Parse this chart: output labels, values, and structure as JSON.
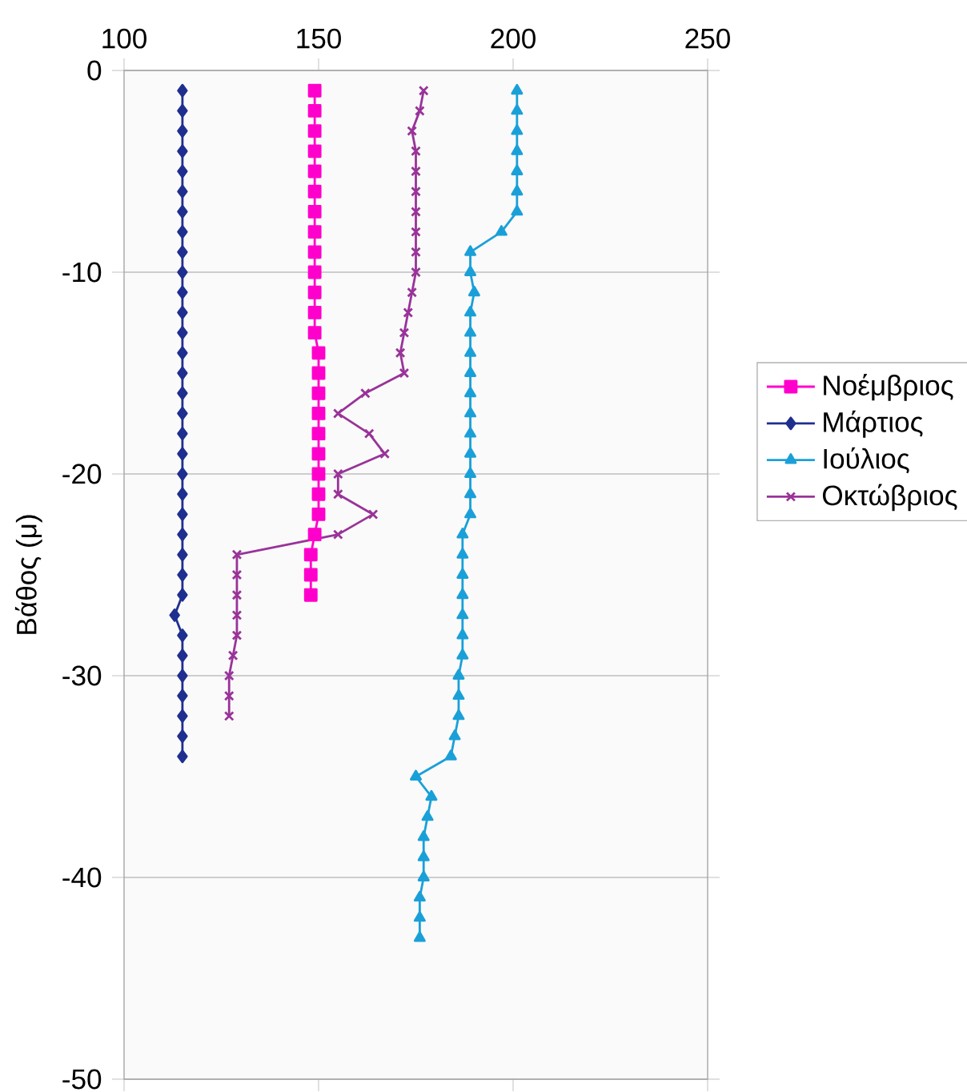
{
  "chart_data": {
    "type": "line",
    "ylabel": "Βάθος (μ)",
    "xlim": [
      100,
      250
    ],
    "xticks": [
      100,
      150,
      200,
      250
    ],
    "ylim": [
      -50,
      0
    ],
    "yticks": [
      -50,
      -40,
      -30,
      -20,
      -10,
      0
    ],
    "grid": "y",
    "legend": "right",
    "series": [
      {
        "name": "Νοέμβριος",
        "color": "#ff00cc",
        "marker": "square",
        "x": [
          149,
          149,
          149,
          149,
          149,
          149,
          149,
          149,
          149,
          149,
          149,
          149,
          149,
          150,
          150,
          150,
          150,
          150,
          150,
          150,
          150,
          150,
          149,
          148,
          148,
          148
        ],
        "values": [
          -1,
          -2,
          -3,
          -4,
          -5,
          -6,
          -7,
          -8,
          -9,
          -10,
          -11,
          -12,
          -13,
          -14,
          -15,
          -16,
          -17,
          -18,
          -19,
          -20,
          -21,
          -22,
          -23,
          -24,
          -25,
          -26
        ]
      },
      {
        "name": "Μάρτιος",
        "color": "#1f2f8f",
        "marker": "diamond",
        "x": [
          115,
          115,
          115,
          115,
          115,
          115,
          115,
          115,
          115,
          115,
          115,
          115,
          115,
          115,
          115,
          115,
          115,
          115,
          115,
          115,
          115,
          115,
          115,
          115,
          115,
          115,
          113,
          115,
          115,
          115,
          115,
          115,
          115,
          115
        ],
        "values": [
          -1,
          -2,
          -3,
          -4,
          -5,
          -6,
          -7,
          -8,
          -9,
          -10,
          -11,
          -12,
          -13,
          -14,
          -15,
          -16,
          -17,
          -18,
          -19,
          -20,
          -21,
          -22,
          -23,
          -24,
          -25,
          -26,
          -27,
          -28,
          -29,
          -30,
          -31,
          -32,
          -33,
          -34
        ]
      },
      {
        "name": "Ιούλιος",
        "color": "#1aa0d8",
        "marker": "triangle",
        "x": [
          201,
          201,
          201,
          201,
          201,
          201,
          201,
          197,
          189,
          189,
          190,
          189,
          189,
          189,
          189,
          189,
          189,
          189,
          189,
          189,
          189,
          189,
          187,
          187,
          187,
          187,
          187,
          187,
          187,
          186,
          186,
          186,
          185,
          184,
          175,
          179,
          178,
          177,
          177,
          177,
          176,
          176,
          176
        ],
        "values": [
          -1,
          -2,
          -3,
          -4,
          -5,
          -6,
          -7,
          -8,
          -9,
          -10,
          -11,
          -12,
          -13,
          -14,
          -15,
          -16,
          -17,
          -18,
          -19,
          -20,
          -21,
          -22,
          -23,
          -24,
          -25,
          -26,
          -27,
          -28,
          -29,
          -30,
          -31,
          -32,
          -33,
          -34,
          -35,
          -36,
          -37,
          -38,
          -39,
          -40,
          -41,
          -42,
          -43
        ]
      },
      {
        "name": "Οκτώβριος",
        "color": "#993399",
        "marker": "cross",
        "x": [
          177,
          176,
          174,
          175,
          175,
          175,
          175,
          175,
          175,
          175,
          174,
          173,
          172,
          171,
          172,
          162,
          155,
          163,
          167,
          155,
          155,
          164,
          155,
          129,
          129,
          129,
          129,
          129,
          128,
          127,
          127,
          127
        ],
        "values": [
          -1,
          -2,
          -3,
          -4,
          -5,
          -6,
          -7,
          -8,
          -9,
          -10,
          -11,
          -12,
          -13,
          -14,
          -15,
          -16,
          -17,
          -18,
          -19,
          -20,
          -21,
          -22,
          -23,
          -24,
          -25,
          -26,
          -27,
          -28,
          -29,
          -30,
          -31,
          -32
        ]
      }
    ]
  }
}
